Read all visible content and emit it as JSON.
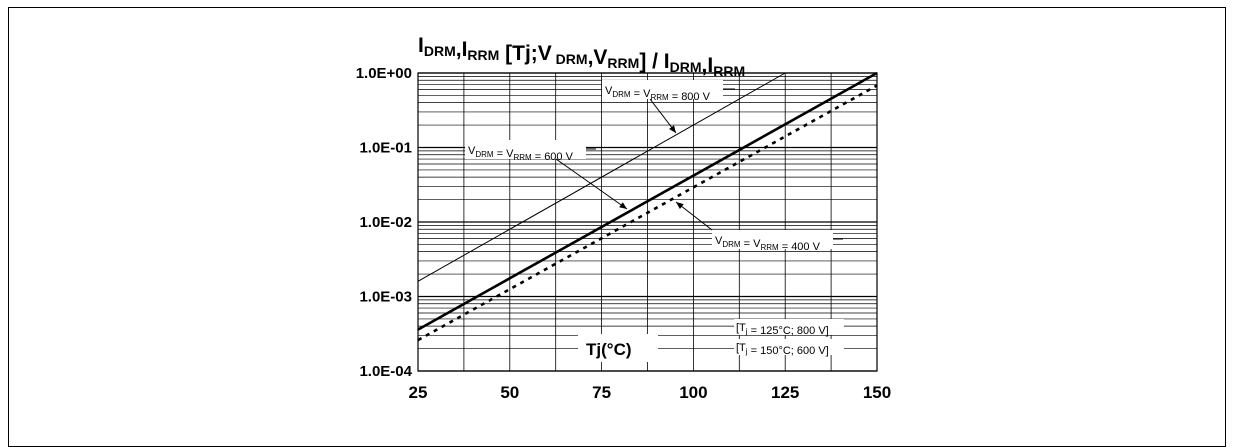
{
  "chart_data": {
    "type": "line",
    "title": {
      "parts": [
        {
          "t": "I",
          "sub": false
        },
        {
          "t": "DRM",
          "sub": true
        },
        {
          "t": ",I",
          "sub": false
        },
        {
          "t": "RRM",
          "sub": true
        },
        {
          "t": " [Tj;V",
          "sub": false
        },
        {
          "t": " DRM",
          "sub": true
        },
        {
          "t": ",V",
          "sub": false
        },
        {
          "t": "RRM",
          "sub": true
        },
        {
          "t": "] / I",
          "sub": false
        },
        {
          "t": "DRM",
          "sub": true
        },
        {
          "t": ",I",
          "sub": false
        },
        {
          "t": "RRM",
          "sub": true
        }
      ]
    },
    "xlabel": "Tj(°C)",
    "x_ticks": [
      25,
      50,
      75,
      100,
      125,
      150
    ],
    "x_range": [
      25,
      150
    ],
    "y_scale": "log",
    "y_range": [
      0.0001,
      1.0
    ],
    "y_ticks": [
      {
        "value": 1.0,
        "label": "1.0E+00"
      },
      {
        "value": 0.1,
        "label": "1.0E-01"
      },
      {
        "value": 0.01,
        "label": "1.0E-02"
      },
      {
        "value": 0.001,
        "label": "1.0E-03"
      },
      {
        "value": 0.0001,
        "label": "1.0E-04"
      }
    ],
    "grid": true,
    "series": [
      {
        "name": "V DRM = V RRM = 800 V",
        "style": "thin",
        "x": [
          25,
          125
        ],
        "y": [
          0.0016,
          1.0
        ]
      },
      {
        "name": "V DRM = V RRM = 600 V",
        "style": "thick",
        "x": [
          25,
          150
        ],
        "y": [
          0.00036,
          1.0
        ]
      },
      {
        "name": "V DRM = V RRM = 400 V",
        "style": "dotted",
        "x": [
          25,
          150
        ],
        "y": [
          0.00026,
          0.68
        ]
      }
    ],
    "annotations": [
      {
        "series": 0,
        "parts": [
          {
            "t": "V",
            "sub": false
          },
          {
            "t": "DRM",
            "sub": true
          },
          {
            "t": " = V",
            "sub": false
          },
          {
            "t": "RRM",
            "sub": true
          },
          {
            "t": " = 800 V",
            "sub": false
          }
        ]
      },
      {
        "series": 1,
        "parts": [
          {
            "t": "V",
            "sub": false
          },
          {
            "t": "DRM",
            "sub": true
          },
          {
            "t": " = V",
            "sub": false
          },
          {
            "t": "RRM",
            "sub": true
          },
          {
            "t": " = 600 V",
            "sub": false
          }
        ]
      },
      {
        "series": 2,
        "parts": [
          {
            "t": "V",
            "sub": false
          },
          {
            "t": "DRM",
            "sub": true
          },
          {
            "t": " = V",
            "sub": false
          },
          {
            "t": "RRM",
            "sub": true
          },
          {
            "t": " = 400 V",
            "sub": false
          }
        ]
      }
    ],
    "notes": [
      {
        "parts": [
          {
            "t": "[T",
            "sub": false
          },
          {
            "t": "j",
            "sub": true
          },
          {
            "t": " = 125°C; 800 V]",
            "sub": false
          }
        ]
      },
      {
        "parts": [
          {
            "t": "[T",
            "sub": false
          },
          {
            "t": "j",
            "sub": true
          },
          {
            "t": " = 150°C; 600 V]",
            "sub": false
          }
        ]
      }
    ]
  }
}
